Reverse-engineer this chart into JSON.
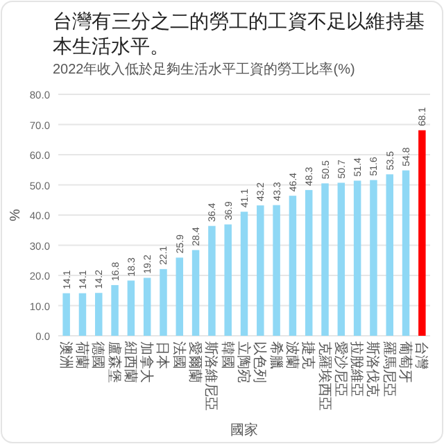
{
  "chart_data": {
    "type": "bar",
    "title": "台灣有三分之二的勞工的工資不足以維持基本生活水平。",
    "subtitle": "2022年收入低於足夠生活水平工資的勞工比率(%)",
    "xlabel": "國家",
    "ylabel": "%",
    "categories": [
      "澳洲",
      "荷蘭",
      "德國",
      "盧森堡",
      "紐西蘭",
      "加拿大",
      "日本",
      "法國",
      "愛爾蘭",
      "斯洛維尼亞",
      "韓國",
      "立陶宛",
      "以色列",
      "希臘",
      "波蘭",
      "捷克",
      "克羅埃西亞",
      "愛沙尼亞",
      "拉脫維亞",
      "斯洛伐克",
      "羅馬尼亞",
      "葡萄牙",
      "台灣"
    ],
    "values": [
      14.1,
      14.1,
      14.2,
      16.8,
      18.3,
      19.2,
      22.1,
      25.9,
      28.4,
      36.4,
      36.9,
      41.1,
      43.2,
      43.3,
      46.4,
      48.3,
      50.5,
      50.7,
      51.4,
      51.6,
      53.5,
      54.8,
      68.1
    ],
    "colors": [
      "#8fd8f5",
      "#8fd8f5",
      "#8fd8f5",
      "#8fd8f5",
      "#8fd8f5",
      "#8fd8f5",
      "#8fd8f5",
      "#8fd8f5",
      "#8fd8f5",
      "#8fd8f5",
      "#8fd8f5",
      "#8fd8f5",
      "#8fd8f5",
      "#8fd8f5",
      "#8fd8f5",
      "#8fd8f5",
      "#8fd8f5",
      "#8fd8f5",
      "#8fd8f5",
      "#8fd8f5",
      "#8fd8f5",
      "#8fd8f5",
      "#ff0000"
    ],
    "ylim": [
      0,
      80
    ],
    "yticks": [
      {
        "value": 0,
        "label": "0.0"
      },
      {
        "value": 10,
        "label": "10.0"
      },
      {
        "value": 20,
        "label": "20.0"
      },
      {
        "value": 30,
        "label": "30.0"
      },
      {
        "value": 40,
        "label": "40.0"
      },
      {
        "value": 50,
        "label": "50.0"
      },
      {
        "value": 60,
        "label": "60.0"
      },
      {
        "value": 70,
        "label": "70.0"
      },
      {
        "value": 80,
        "label": "80.0"
      }
    ],
    "grid": "y",
    "data_labels": true
  }
}
